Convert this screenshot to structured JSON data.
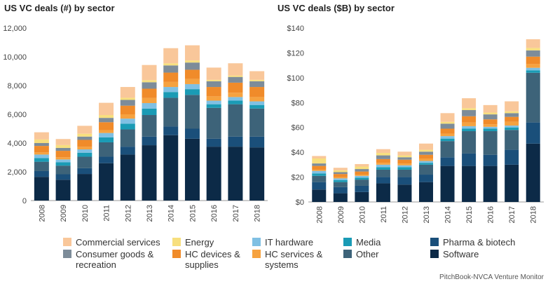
{
  "source": "PitchBook-NVCA Venture Monitor",
  "sectors": [
    {
      "name": "Software",
      "color": "#0c2a47"
    },
    {
      "name": "Pharma & biotech",
      "color": "#1a4f7a"
    },
    {
      "name": "Other",
      "color": "#3d6379"
    },
    {
      "name": "HC services & systems",
      "color": "#f6a23f"
    },
    {
      "name": "HC devices & supplies",
      "color": "#f08b2a"
    },
    {
      "name": "Consumer goods & recreation",
      "color": "#7d8c99"
    },
    {
      "name": "Media",
      "color": "#1a9bb5"
    },
    {
      "name": "IT hardware",
      "color": "#80c0e3"
    },
    {
      "name": "Energy",
      "color": "#f7df7e"
    },
    {
      "name": "Commercial services",
      "color": "#f9c79a"
    }
  ],
  "legend": [
    {
      "label": "Commercial services",
      "color": "#f9c79a"
    },
    {
      "label": "Energy",
      "color": "#f7df7e"
    },
    {
      "label": "IT hardware",
      "color": "#80c0e3"
    },
    {
      "label": "Media",
      "color": "#1a9bb5"
    },
    {
      "label": "Pharma & biotech",
      "color": "#1a4f7a"
    },
    {
      "label": "Consumer goods &\nrecreation",
      "color": "#7d8c99"
    },
    {
      "label": "HC devices &\nsupplies",
      "color": "#f08b2a"
    },
    {
      "label": "HC services &\nsystems",
      "color": "#f6a23f"
    },
    {
      "label": "Other",
      "color": "#3d6379"
    },
    {
      "label": "Software",
      "color": "#0c2a47"
    }
  ],
  "chart_data": [
    {
      "type": "bar",
      "stacked": true,
      "title": "US VC deals (#) by sector",
      "categories": [
        "2008",
        "2009",
        "2010",
        "2011",
        "2012",
        "2013",
        "2014",
        "2015",
        "2016",
        "2017",
        "2018"
      ],
      "ylim": [
        0,
        12000
      ],
      "yticks": [
        "0",
        "2,000",
        "4,000",
        "6,000",
        "8,000",
        "10,000",
        "12,000"
      ],
      "grid": false,
      "series": [
        {
          "name": "Software",
          "values": [
            1650,
            1450,
            1850,
            2600,
            3200,
            3850,
            4550,
            4300,
            3750,
            3750,
            3700
          ]
        },
        {
          "name": "Pharma & biotech",
          "values": [
            400,
            380,
            400,
            450,
            550,
            600,
            600,
            700,
            550,
            700,
            750
          ]
        },
        {
          "name": "Other",
          "values": [
            650,
            600,
            800,
            1000,
            1200,
            1500,
            2000,
            2350,
            2150,
            2250,
            1950
          ]
        },
        {
          "name": "Media",
          "values": [
            250,
            230,
            280,
            350,
            400,
            450,
            400,
            400,
            250,
            250,
            250
          ]
        },
        {
          "name": "IT hardware",
          "values": [
            250,
            200,
            230,
            300,
            350,
            380,
            350,
            350,
            250,
            250,
            250
          ]
        },
        {
          "name": "HC services & systems",
          "values": [
            150,
            150,
            180,
            200,
            300,
            350,
            350,
            350,
            300,
            300,
            300
          ]
        },
        {
          "name": "HC devices & supplies",
          "values": [
            450,
            450,
            480,
            550,
            600,
            650,
            650,
            650,
            650,
            700,
            700
          ]
        },
        {
          "name": "Consumer goods & recreation",
          "values": [
            200,
            200,
            230,
            300,
            400,
            450,
            500,
            500,
            400,
            400,
            400
          ]
        },
        {
          "name": "Energy",
          "values": [
            250,
            200,
            200,
            200,
            150,
            150,
            150,
            150,
            100,
            100,
            100
          ]
        },
        {
          "name": "Commercial services",
          "values": [
            500,
            420,
            550,
            850,
            750,
            1050,
            1050,
            1050,
            850,
            850,
            600
          ]
        }
      ]
    },
    {
      "type": "bar",
      "stacked": true,
      "title": "US VC deals ($B) by sector",
      "categories": [
        "2008",
        "2009",
        "2010",
        "2011",
        "2012",
        "2013",
        "2014",
        "2015",
        "2016",
        "2017",
        "2018"
      ],
      "ylim": [
        0,
        140
      ],
      "yticks": [
        "$0",
        "$20",
        "$40",
        "$60",
        "$80",
        "$100",
        "$120",
        "$140"
      ],
      "grid": false,
      "series": [
        {
          "name": "Software",
          "values": [
            10,
            7,
            8,
            15,
            14,
            16,
            29,
            29,
            29,
            30,
            47
          ]
        },
        {
          "name": "Pharma & biotech",
          "values": [
            6,
            5,
            5,
            5,
            6,
            6,
            7,
            10,
            9,
            12,
            17
          ]
        },
        {
          "name": "Other",
          "values": [
            5,
            4,
            5,
            6,
            6,
            8,
            13,
            18,
            19,
            16,
            40
          ]
        },
        {
          "name": "Media",
          "values": [
            2,
            1.5,
            1.5,
            2,
            2,
            1.5,
            2,
            2,
            2,
            2,
            2
          ]
        },
        {
          "name": "IT hardware",
          "values": [
            2,
            1.5,
            1.5,
            2,
            1.5,
            1.5,
            2,
            2,
            1.5,
            1.5,
            2
          ]
        },
        {
          "name": "HC services & systems",
          "values": [
            1,
            1,
            1,
            1.5,
            1.5,
            2,
            2,
            3,
            2,
            3,
            3
          ]
        },
        {
          "name": "HC devices & supplies",
          "values": [
            3,
            2.5,
            2.5,
            3,
            3,
            3,
            4,
            5,
            4,
            4,
            6
          ]
        },
        {
          "name": "Consumer goods & recreation",
          "values": [
            2,
            1.5,
            2,
            3,
            2,
            2.5,
            4,
            5,
            4,
            3,
            5
          ]
        },
        {
          "name": "Energy",
          "values": [
            4,
            1.5,
            2,
            2,
            1.5,
            1.5,
            1.5,
            1.5,
            1.5,
            1.5,
            2
          ]
        },
        {
          "name": "Commercial services",
          "values": [
            2,
            2,
            2,
            3,
            3,
            5,
            7,
            8,
            6,
            8,
            7
          ]
        }
      ]
    }
  ]
}
